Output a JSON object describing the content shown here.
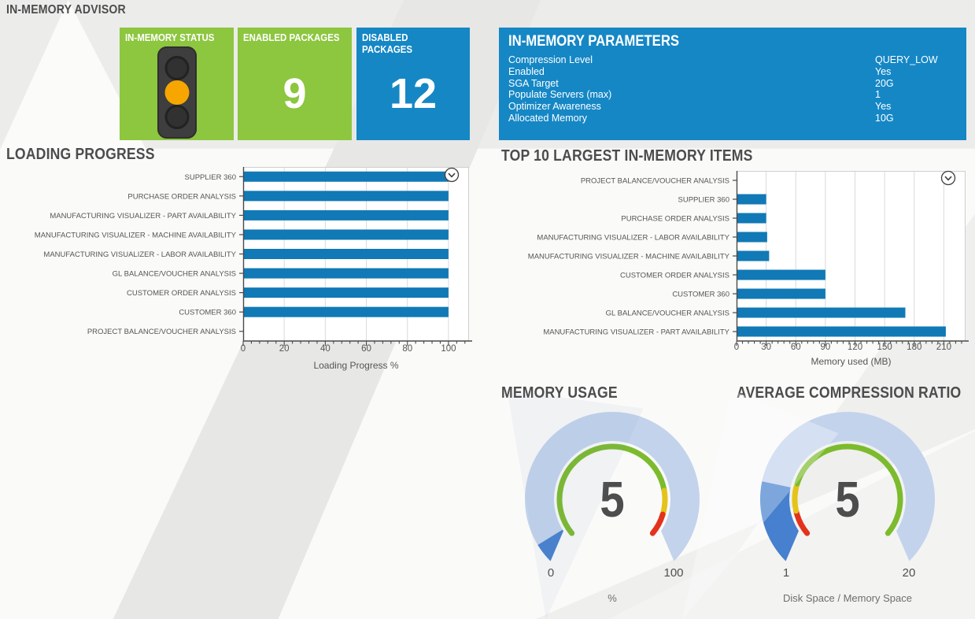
{
  "page": {
    "title": "IN-MEMORY ADVISOR"
  },
  "status_cards": {
    "status": {
      "label": "IN-MEMORY STATUS",
      "icon": "traffic-light-icon",
      "active_light": "amber"
    },
    "enabled": {
      "label": "ENABLED PACKAGES",
      "value": "9"
    },
    "disabled": {
      "label": "DISABLED PACKAGES",
      "value": "12"
    }
  },
  "parameters_panel": {
    "title": "IN-MEMORY PARAMETERS",
    "rows": [
      {
        "label": "Compression Level",
        "value": "QUERY_LOW"
      },
      {
        "label": "Enabled",
        "value": "Yes"
      },
      {
        "label": "SGA Target",
        "value": "20G"
      },
      {
        "label": "Populate Servers (max)",
        "value": "1"
      },
      {
        "label": "Optimizer Awareness",
        "value": "Yes"
      },
      {
        "label": "Allocated Memory",
        "value": "10G"
      }
    ]
  },
  "chart_data": [
    {
      "id": "loading_progress",
      "type": "bar",
      "orientation": "horizontal",
      "title": "LOADING PROGRESS",
      "categories": [
        "SUPPLIER 360",
        "PURCHASE ORDER ANALYSIS",
        "MANUFACTURING VISUALIZER - PART AVAILABILITY",
        "MANUFACTURING VISUALIZER - MACHINE AVAILABILITY",
        "MANUFACTURING VISUALIZER - LABOR AVAILABILITY",
        "GL BALANCE/VOUCHER ANALYSIS",
        "CUSTOMER ORDER ANALYSIS",
        "CUSTOMER 360",
        "PROJECT BALANCE/VOUCHER ANALYSIS"
      ],
      "values": [
        100,
        100,
        100,
        100,
        100,
        100,
        100,
        100,
        0
      ],
      "xlabel": "Loading Progress %",
      "xticks": [
        0,
        20,
        40,
        60,
        80,
        100
      ],
      "xmax": 110,
      "minor_step": 4,
      "grid": true,
      "collapse_icon": "chevron-down-circle-icon"
    },
    {
      "id": "top10",
      "type": "bar",
      "orientation": "horizontal",
      "title": "TOP 10 LARGEST IN-MEMORY ITEMS",
      "categories": [
        "PROJECT BALANCE/VOUCHER ANALYSIS",
        "SUPPLIER 360",
        "PURCHASE ORDER ANALYSIS",
        "MANUFACTURING VISUALIZER - LABOR AVAILABILITY",
        "MANUFACTURING VISUALIZER - MACHINE AVAILABILITY",
        "CUSTOMER ORDER ANALYSIS",
        "CUSTOMER 360",
        "GL BALANCE/VOUCHER ANALYSIS",
        "MANUFACTURING VISUALIZER - PART AVAILABILITY"
      ],
      "values": [
        0,
        30,
        30,
        31,
        33,
        90,
        90,
        171,
        212
      ],
      "xlabel": "Memory used (MB)",
      "xticks": [
        0,
        30,
        60,
        90,
        120,
        150,
        180,
        210
      ],
      "xmax": 232,
      "minor_step": 6,
      "grid": true,
      "collapse_icon": "chevron-down-circle-icon"
    },
    {
      "id": "memory_usage",
      "type": "gauge",
      "title": "MEMORY USAGE",
      "value": 5,
      "min": 0,
      "max": 100,
      "min_label": "0",
      "max_label": "100",
      "caption": "%",
      "thresholds": [
        {
          "to": 0.81,
          "color": "green"
        },
        {
          "to": 0.91,
          "color": "yellow"
        },
        {
          "to": 1.0,
          "color": "red"
        }
      ]
    },
    {
      "id": "avg_compression",
      "type": "gauge",
      "title": "AVERAGE COMPRESSION RATIO",
      "value": 5,
      "min": 1,
      "max": 20,
      "min_label": "1",
      "max_label": "20",
      "caption": "Disk Space / Memory Space",
      "thresholds": [
        {
          "to": 0.105,
          "color": "red"
        },
        {
          "to": 0.22,
          "color": "yellow"
        },
        {
          "to": 1.0,
          "color": "green"
        }
      ]
    }
  ],
  "colors": {
    "green_card": "#8DC63F",
    "blue_panel": "#1587C5",
    "bar_blue": "#1179B5",
    "title_gray": "#4C4C4C",
    "axis": "#4A4A4A",
    "grid": "#DADADA",
    "plot_border": "#CFCFCF",
    "label_gray": "#555555",
    "number_gray": "#4D4D4D",
    "gauge_ring": "#C3D3EC",
    "gauge_fill": "#4680CE",
    "gauge_green": "#7CBB2D",
    "gauge_yellow": "#E5C419",
    "gauge_red": "#E3331C",
    "amber_light": "#F7A600"
  }
}
